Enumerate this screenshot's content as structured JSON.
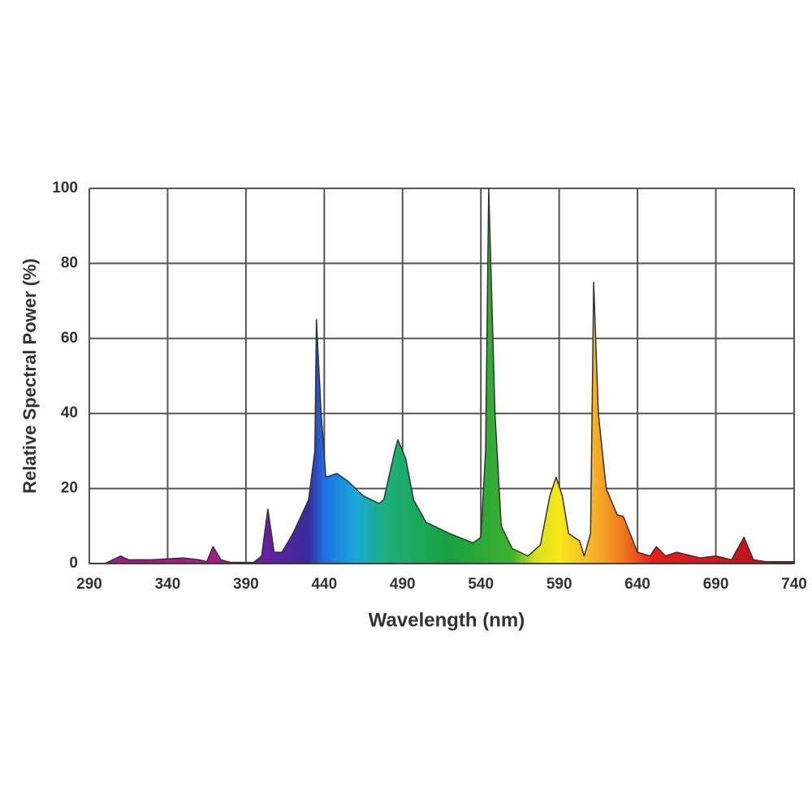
{
  "chart_data": {
    "type": "area",
    "x_label": "Wavelength (nm)",
    "y_label": "Relative Spectral Power (%)",
    "x": [
      290,
      300,
      310,
      315,
      330,
      350,
      360,
      365,
      369,
      374,
      380,
      395,
      400,
      404,
      408,
      413,
      420,
      430,
      434,
      435,
      438,
      441,
      448,
      455,
      465,
      475,
      478,
      485,
      487,
      492,
      497,
      505,
      520,
      535,
      540,
      543,
      545,
      549,
      553,
      560,
      570,
      578,
      584,
      588,
      592,
      596,
      603,
      606,
      610,
      611,
      612,
      615,
      620,
      627,
      631,
      640,
      648,
      652,
      658,
      665,
      680,
      690,
      700,
      708,
      714,
      722,
      740
    ],
    "values": [
      0,
      0,
      2,
      1,
      1,
      1.5,
      1,
      0.5,
      4.5,
      1,
      0.3,
      0.3,
      2,
      14.5,
      3,
      3,
      8,
      17,
      30,
      65,
      40,
      23,
      24,
      22,
      18,
      16,
      17,
      30,
      33,
      28,
      17,
      11,
      8,
      5.5,
      7,
      30,
      100,
      40,
      10,
      4,
      2,
      5,
      18,
      23,
      18,
      8,
      6,
      2,
      8,
      40,
      75,
      40,
      20,
      13,
      12.5,
      3,
      2,
      4.5,
      2,
      3,
      1.5,
      2,
      1,
      7,
      1,
      0.5,
      0.5
    ],
    "xlim": [
      290,
      740
    ],
    "ylim": [
      0,
      100
    ],
    "xticks": [
      290,
      340,
      390,
      440,
      490,
      540,
      590,
      640,
      690,
      740
    ],
    "yticks": [
      0,
      20,
      40,
      60,
      80,
      100
    ],
    "grid": true
  }
}
